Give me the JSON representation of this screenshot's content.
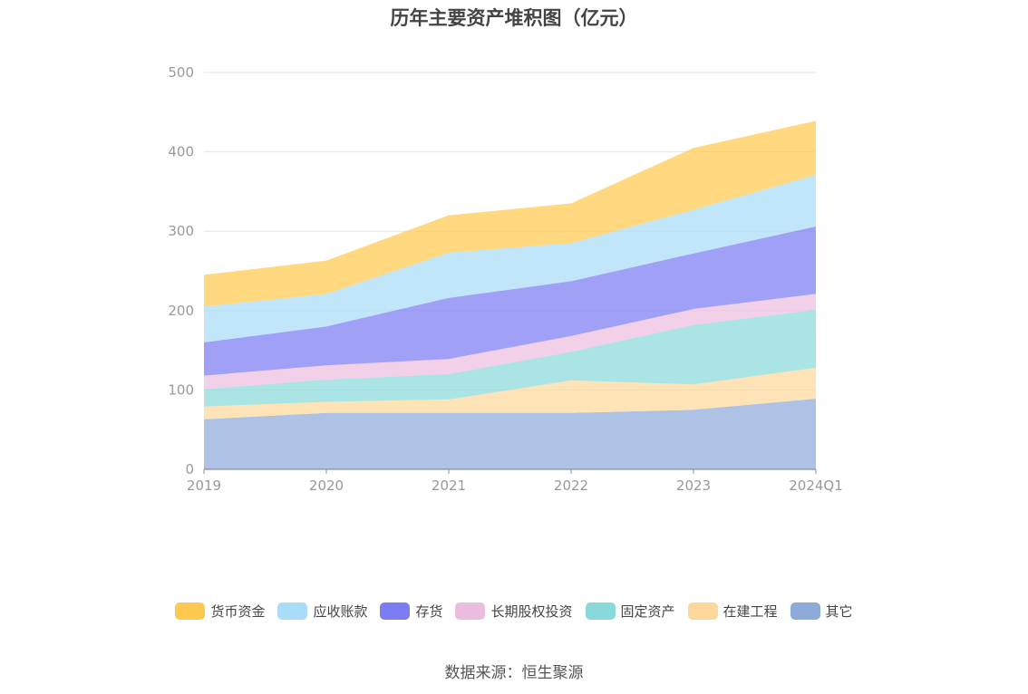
{
  "chart_data": {
    "type": "area",
    "stacked": true,
    "title": "历年主要资产堆积图（亿元）",
    "xlabel": "",
    "ylabel": "",
    "categories": [
      "2019",
      "2020",
      "2021",
      "2022",
      "2023",
      "2024Q1"
    ],
    "ylim": [
      0,
      500
    ],
    "yticks": [
      0,
      100,
      200,
      300,
      400,
      500
    ],
    "grid": true,
    "legend_position": "bottom",
    "series": [
      {
        "name": "其它",
        "color": "#8eaad9",
        "values": [
          63,
          71,
          71,
          71,
          75,
          89
        ]
      },
      {
        "name": "在建工程",
        "color": "#fdd89a",
        "values": [
          16,
          14,
          17,
          41,
          32,
          39
        ]
      },
      {
        "name": "固定资产",
        "color": "#8ad9da",
        "values": [
          22,
          28,
          32,
          36,
          75,
          73
        ]
      },
      {
        "name": "长期股权投资",
        "color": "#ebbedf",
        "values": [
          17,
          18,
          19,
          20,
          20,
          20
        ]
      },
      {
        "name": "存货",
        "color": "#7c7cf2",
        "values": [
          42,
          49,
          77,
          69,
          70,
          85
        ]
      },
      {
        "name": "应收账款",
        "color": "#a9ddf7",
        "values": [
          45,
          41,
          57,
          48,
          55,
          65
        ]
      },
      {
        "name": "货币资金",
        "color": "#ffc94f",
        "values": [
          40,
          42,
          47,
          50,
          78,
          68
        ]
      }
    ],
    "legend_order": [
      "货币资金",
      "应收账款",
      "存货",
      "长期股权投资",
      "固定资产",
      "在建工程",
      "其它"
    ]
  },
  "source": "数据来源：恒生聚源"
}
